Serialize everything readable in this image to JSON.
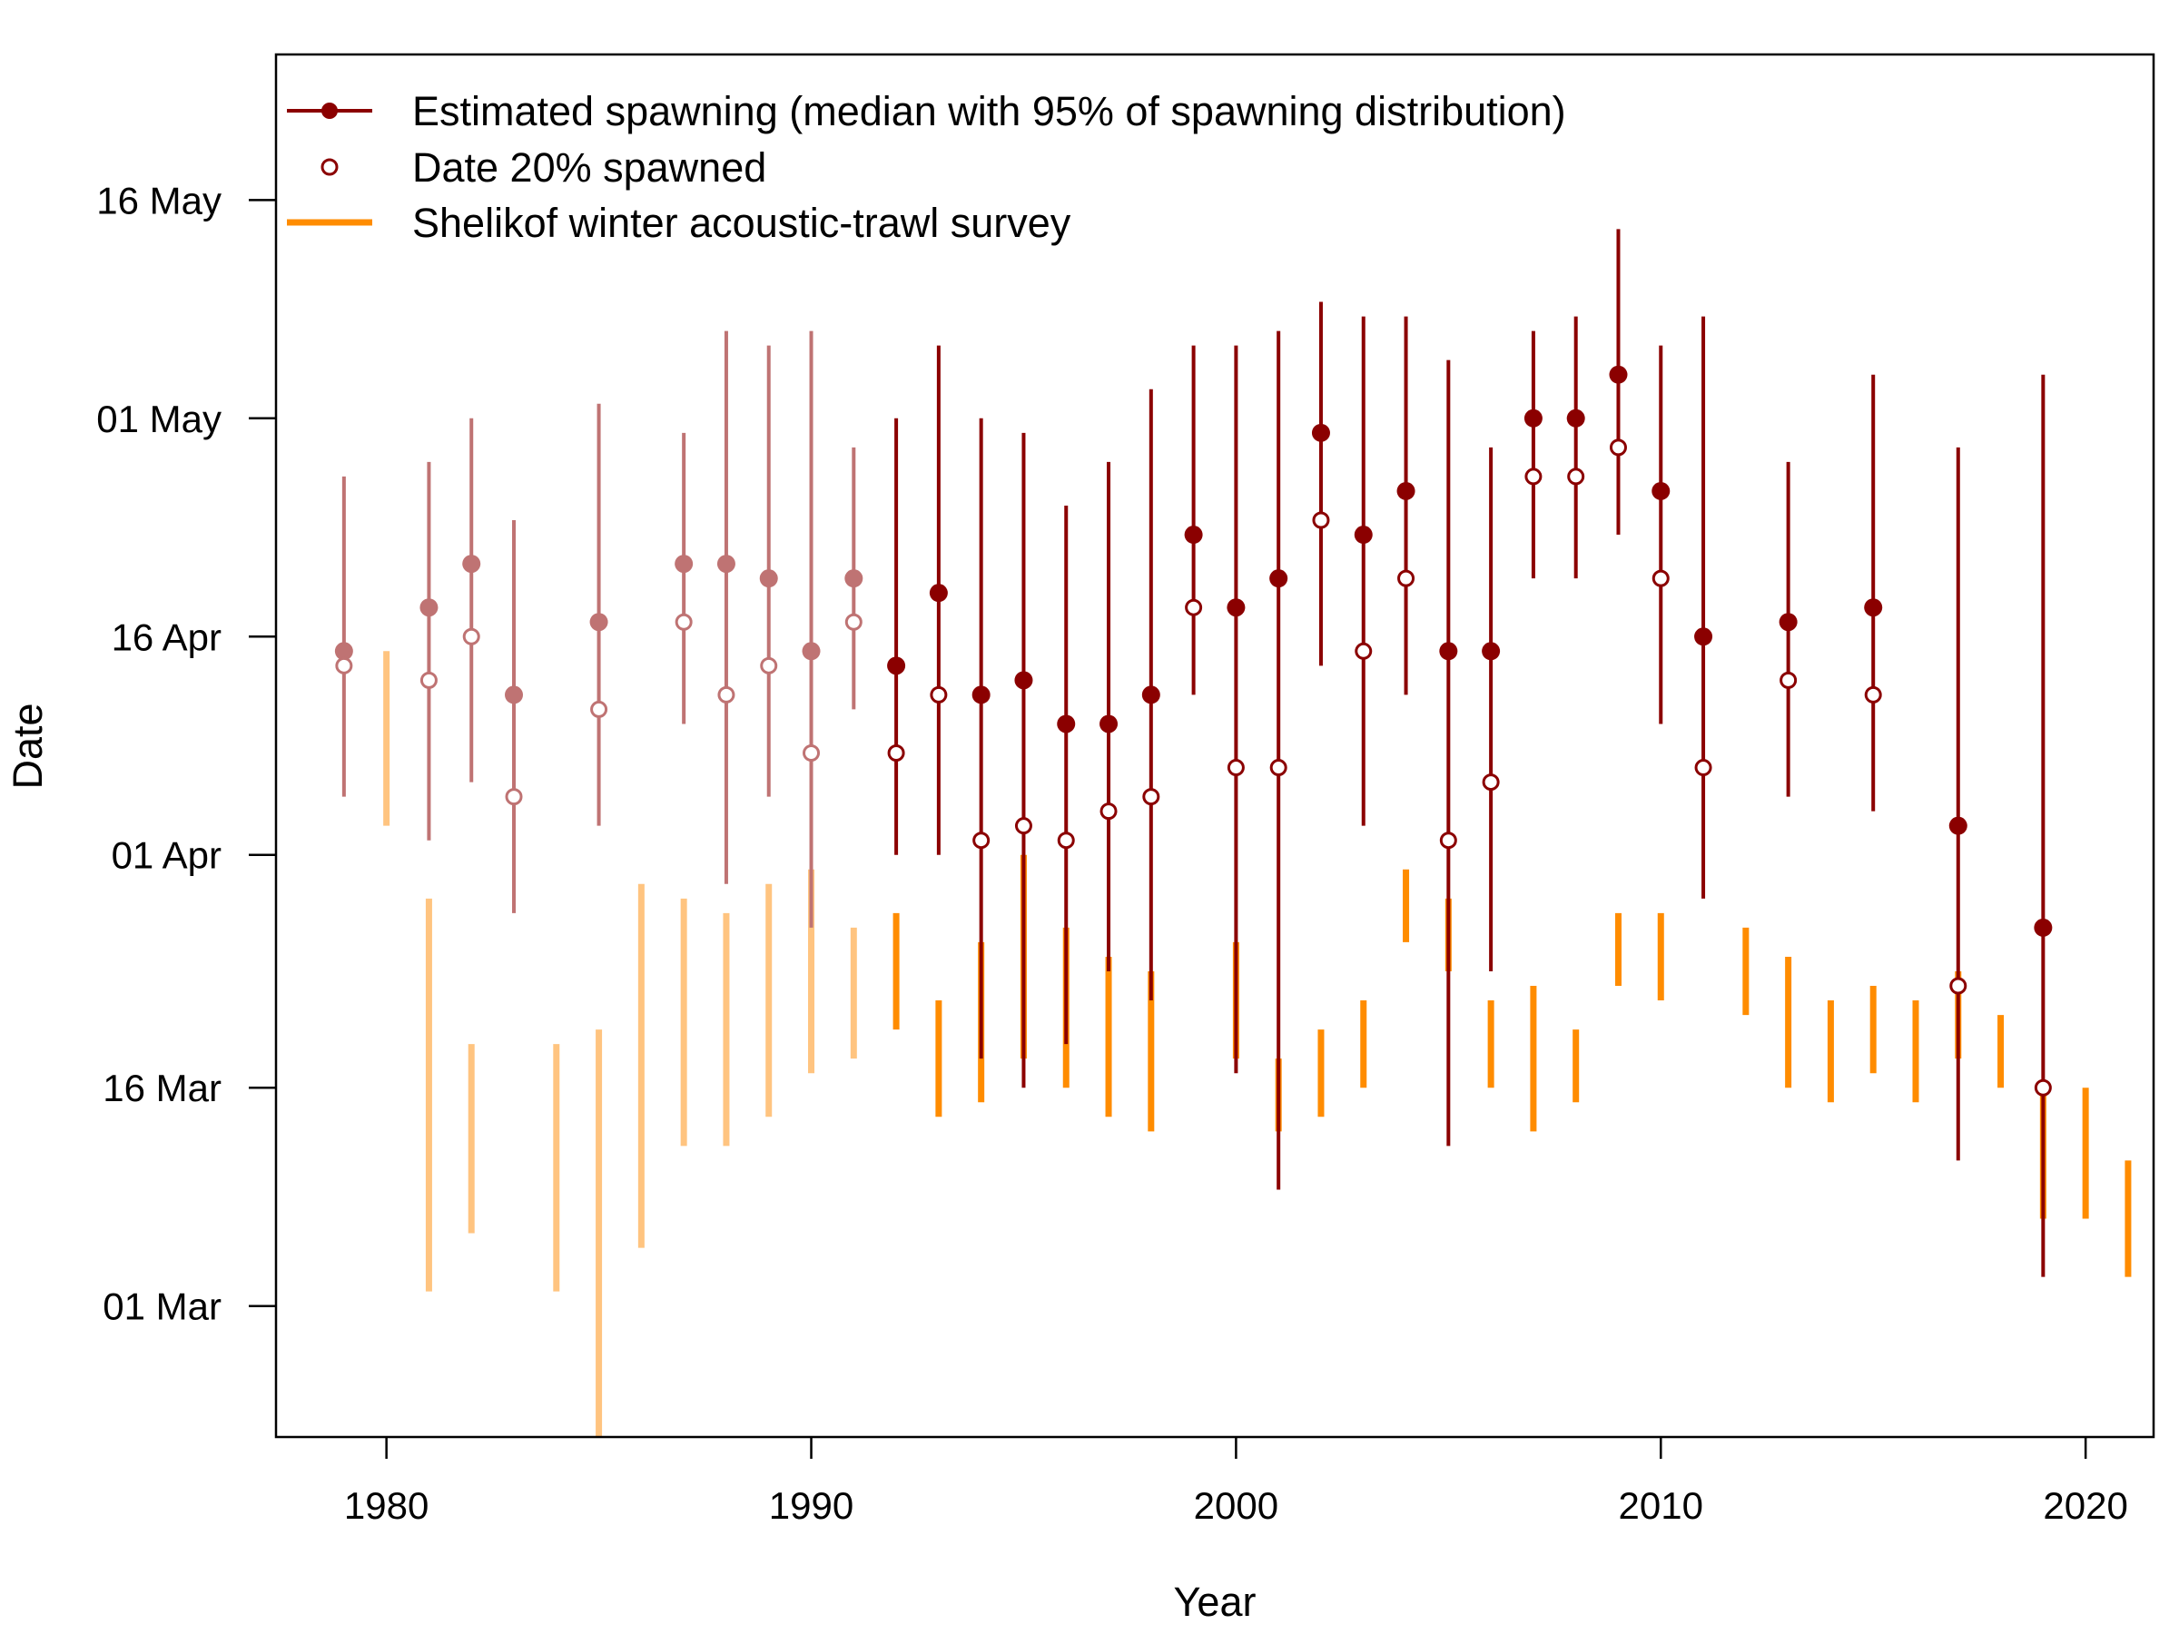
{
  "chart_data": {
    "type": "scatter",
    "xlabel": "Year",
    "ylabel": "Date",
    "xlim": [
      1977.4,
      2021.6
    ],
    "ylim": [
      "2000-02-21",
      "2000-05-26"
    ],
    "x_ticks": [
      1980,
      1990,
      2000,
      2010,
      2020
    ],
    "y_ticks": [
      {
        "label": "01 Mar",
        "date": "2000-03-01"
      },
      {
        "label": "16 Mar",
        "date": "2000-03-16"
      },
      {
        "label": "01 Apr",
        "date": "2000-04-01"
      },
      {
        "label": "16 Apr",
        "date": "2000-04-16"
      },
      {
        "label": "01 May",
        "date": "2000-05-01"
      },
      {
        "label": "16 May",
        "date": "2000-05-16"
      }
    ],
    "grid": false,
    "legend": {
      "position": "top-left",
      "entries": [
        {
          "label": "Estimated spawning (median with 95% of spawning distribution)",
          "color": "#8B0000",
          "marker": "line-with-filled-point"
        },
        {
          "label": "Date 20% spawned",
          "color": "#8B0000",
          "marker": "open-circle"
        },
        {
          "label": "Shelikof winter acoustic-trawl survey",
          "color": "#FF8C00",
          "marker": "line"
        }
      ]
    },
    "colors": {
      "spawning": "#8B0000",
      "spawning_faded": "#BF7373",
      "survey": "#FF8C00",
      "survey_faded": "#FFC480"
    },
    "series": [
      {
        "name": "Estimated spawning (median with 95% of spawning distribution)",
        "points": [
          {
            "year": 1979,
            "median": "2000-04-15",
            "low": "2000-04-05",
            "high": "2000-04-27",
            "faded": true
          },
          {
            "year": 1981,
            "median": "2000-04-18",
            "low": "2000-04-02",
            "high": "2000-04-28",
            "faded": true
          },
          {
            "year": 1982,
            "median": "2000-04-21",
            "low": "2000-04-06",
            "high": "2000-05-01",
            "faded": true
          },
          {
            "year": 1983,
            "median": "2000-04-12",
            "low": "2000-03-28",
            "high": "2000-04-24",
            "faded": true
          },
          {
            "year": 1985,
            "median": "2000-04-17",
            "low": "2000-04-03",
            "high": "2000-05-02",
            "faded": true
          },
          {
            "year": 1987,
            "median": "2000-04-21",
            "low": "2000-04-10",
            "high": "2000-04-30",
            "faded": true
          },
          {
            "year": 1988,
            "median": "2000-04-21",
            "low": "2000-03-30",
            "high": "2000-05-07",
            "faded": true
          },
          {
            "year": 1989,
            "median": "2000-04-20",
            "low": "2000-04-05",
            "high": "2000-05-06",
            "faded": true
          },
          {
            "year": 1990,
            "median": "2000-04-15",
            "low": "2000-03-27",
            "high": "2000-05-07",
            "faded": true
          },
          {
            "year": 1991,
            "median": "2000-04-20",
            "low": "2000-04-11",
            "high": "2000-04-29",
            "faded": true
          },
          {
            "year": 1992,
            "median": "2000-04-14",
            "low": "2000-04-01",
            "high": "2000-05-01",
            "faded": false
          },
          {
            "year": 1993,
            "median": "2000-04-19",
            "low": "2000-04-01",
            "high": "2000-05-06",
            "faded": false
          },
          {
            "year": 1994,
            "median": "2000-04-12",
            "low": "2000-03-18",
            "high": "2000-05-01",
            "faded": false
          },
          {
            "year": 1995,
            "median": "2000-04-13",
            "low": "2000-03-16",
            "high": "2000-04-30",
            "faded": false
          },
          {
            "year": 1996,
            "median": "2000-04-10",
            "low": "2000-03-19",
            "high": "2000-04-25",
            "faded": false
          },
          {
            "year": 1997,
            "median": "2000-04-10",
            "low": "2000-03-24",
            "high": "2000-04-28",
            "faded": false
          },
          {
            "year": 1998,
            "median": "2000-04-12",
            "low": "2000-03-22",
            "high": "2000-05-03",
            "faded": false
          },
          {
            "year": 1999,
            "median": "2000-04-23",
            "low": "2000-04-12",
            "high": "2000-05-06",
            "faded": false
          },
          {
            "year": 2000,
            "median": "2000-04-18",
            "low": "2000-03-17",
            "high": "2000-05-06",
            "faded": false
          },
          {
            "year": 2001,
            "median": "2000-04-20",
            "low": "2000-03-09",
            "high": "2000-05-07",
            "faded": false
          },
          {
            "year": 2002,
            "median": "2000-04-30",
            "low": "2000-04-14",
            "high": "2000-05-09",
            "faded": false
          },
          {
            "year": 2003,
            "median": "2000-04-23",
            "low": "2000-04-03",
            "high": "2000-05-08",
            "faded": false
          },
          {
            "year": 2004,
            "median": "2000-04-26",
            "low": "2000-04-12",
            "high": "2000-05-08",
            "faded": false
          },
          {
            "year": 2005,
            "median": "2000-04-15",
            "low": "2000-03-12",
            "high": "2000-05-05",
            "faded": false
          },
          {
            "year": 2006,
            "median": "2000-04-15",
            "low": "2000-03-24",
            "high": "2000-04-29",
            "faded": false
          },
          {
            "year": 2007,
            "median": "2000-05-01",
            "low": "2000-04-20",
            "high": "2000-05-07",
            "faded": false
          },
          {
            "year": 2008,
            "median": "2000-05-01",
            "low": "2000-04-20",
            "high": "2000-05-08",
            "faded": false
          },
          {
            "year": 2009,
            "median": "2000-05-04",
            "low": "2000-04-23",
            "high": "2000-05-14",
            "faded": false
          },
          {
            "year": 2010,
            "median": "2000-04-26",
            "low": "2000-04-10",
            "high": "2000-05-06",
            "faded": false
          },
          {
            "year": 2011,
            "median": "2000-04-16",
            "low": "2000-03-29",
            "high": "2000-05-08",
            "faded": false
          },
          {
            "year": 2013,
            "median": "2000-04-17",
            "low": "2000-04-05",
            "high": "2000-04-28",
            "faded": false
          },
          {
            "year": 2015,
            "median": "2000-04-18",
            "low": "2000-04-04",
            "high": "2000-05-04",
            "faded": false
          },
          {
            "year": 2017,
            "median": "2000-04-03",
            "low": "2000-03-11",
            "high": "2000-04-29",
            "faded": false
          },
          {
            "year": 2019,
            "median": "2000-03-27",
            "low": "2000-03-03",
            "high": "2000-05-04",
            "faded": false
          }
        ]
      },
      {
        "name": "Date 20% spawned",
        "points": [
          {
            "year": 1979,
            "date": "2000-04-14",
            "faded": true
          },
          {
            "year": 1981,
            "date": "2000-04-13",
            "faded": true
          },
          {
            "year": 1982,
            "date": "2000-04-16",
            "faded": true
          },
          {
            "year": 1983,
            "date": "2000-04-05",
            "faded": true
          },
          {
            "year": 1985,
            "date": "2000-04-11",
            "faded": true
          },
          {
            "year": 1987,
            "date": "2000-04-17",
            "faded": true
          },
          {
            "year": 1988,
            "date": "2000-04-12",
            "faded": true
          },
          {
            "year": 1989,
            "date": "2000-04-14",
            "faded": true
          },
          {
            "year": 1990,
            "date": "2000-04-08",
            "faded": true
          },
          {
            "year": 1991,
            "date": "2000-04-17",
            "faded": true
          },
          {
            "year": 1992,
            "date": "2000-04-08",
            "faded": false
          },
          {
            "year": 1993,
            "date": "2000-04-12",
            "faded": false
          },
          {
            "year": 1994,
            "date": "2000-04-02",
            "faded": false
          },
          {
            "year": 1995,
            "date": "2000-04-03",
            "faded": false
          },
          {
            "year": 1996,
            "date": "2000-04-02",
            "faded": false
          },
          {
            "year": 1997,
            "date": "2000-04-04",
            "faded": false
          },
          {
            "year": 1998,
            "date": "2000-04-05",
            "faded": false
          },
          {
            "year": 1999,
            "date": "2000-04-18",
            "faded": false
          },
          {
            "year": 2000,
            "date": "2000-04-07",
            "faded": false
          },
          {
            "year": 2001,
            "date": "2000-04-07",
            "faded": false
          },
          {
            "year": 2002,
            "date": "2000-04-24",
            "faded": false
          },
          {
            "year": 2003,
            "date": "2000-04-15",
            "faded": false
          },
          {
            "year": 2004,
            "date": "2000-04-20",
            "faded": false
          },
          {
            "year": 2005,
            "date": "2000-04-02",
            "faded": false
          },
          {
            "year": 2006,
            "date": "2000-04-06",
            "faded": false
          },
          {
            "year": 2007,
            "date": "2000-04-27",
            "faded": false
          },
          {
            "year": 2008,
            "date": "2000-04-27",
            "faded": false
          },
          {
            "year": 2009,
            "date": "2000-04-29",
            "faded": false
          },
          {
            "year": 2010,
            "date": "2000-04-20",
            "faded": false
          },
          {
            "year": 2011,
            "date": "2000-04-07",
            "faded": false
          },
          {
            "year": 2013,
            "date": "2000-04-13",
            "faded": false
          },
          {
            "year": 2015,
            "date": "2000-04-12",
            "faded": false
          },
          {
            "year": 2017,
            "date": "2000-03-23",
            "faded": false
          },
          {
            "year": 2019,
            "date": "2000-03-16",
            "faded": false
          }
        ]
      },
      {
        "name": "Shelikof winter acoustic-trawl survey",
        "ranges": [
          {
            "year": 1980,
            "start": "2000-04-03",
            "end": "2000-04-15",
            "faded": true
          },
          {
            "year": 1981,
            "start": "2000-03-02",
            "end": "2000-03-29",
            "faded": true
          },
          {
            "year": 1982,
            "start": "2000-03-06",
            "end": "2000-03-19",
            "faded": true
          },
          {
            "year": 1984,
            "start": "2000-03-02",
            "end": "2000-03-19",
            "faded": true
          },
          {
            "year": 1985,
            "start": "2000-02-21",
            "end": "2000-03-20",
            "faded": true
          },
          {
            "year": 1986,
            "start": "2000-03-05",
            "end": "2000-03-30",
            "faded": true
          },
          {
            "year": 1987,
            "start": "2000-03-12",
            "end": "2000-03-29",
            "faded": true
          },
          {
            "year": 1988,
            "start": "2000-03-12",
            "end": "2000-03-28",
            "faded": true
          },
          {
            "year": 1989,
            "start": "2000-03-14",
            "end": "2000-03-30",
            "faded": true
          },
          {
            "year": 1990,
            "start": "2000-03-17",
            "end": "2000-03-31",
            "faded": true
          },
          {
            "year": 1991,
            "start": "2000-03-18",
            "end": "2000-03-27",
            "faded": true
          },
          {
            "year": 1992,
            "start": "2000-03-20",
            "end": "2000-03-28",
            "faded": false
          },
          {
            "year": 1993,
            "start": "2000-03-14",
            "end": "2000-03-22",
            "faded": false
          },
          {
            "year": 1994,
            "start": "2000-03-15",
            "end": "2000-03-26",
            "faded": false
          },
          {
            "year": 1995,
            "start": "2000-03-18",
            "end": "2000-04-01",
            "faded": false
          },
          {
            "year": 1996,
            "start": "2000-03-16",
            "end": "2000-03-27",
            "faded": false
          },
          {
            "year": 1997,
            "start": "2000-03-14",
            "end": "2000-03-25",
            "faded": false
          },
          {
            "year": 1998,
            "start": "2000-03-13",
            "end": "2000-03-24",
            "faded": false
          },
          {
            "year": 2000,
            "start": "2000-03-18",
            "end": "2000-03-26",
            "faded": false
          },
          {
            "year": 2001,
            "start": "2000-03-13",
            "end": "2000-03-18",
            "faded": false
          },
          {
            "year": 2002,
            "start": "2000-03-14",
            "end": "2000-03-20",
            "faded": false
          },
          {
            "year": 2003,
            "start": "2000-03-16",
            "end": "2000-03-22",
            "faded": false
          },
          {
            "year": 2004,
            "start": "2000-03-26",
            "end": "2000-03-31",
            "faded": false
          },
          {
            "year": 2005,
            "start": "2000-03-24",
            "end": "2000-03-29",
            "faded": false
          },
          {
            "year": 2006,
            "start": "2000-03-16",
            "end": "2000-03-22",
            "faded": false
          },
          {
            "year": 2007,
            "start": "2000-03-13",
            "end": "2000-03-23",
            "faded": false
          },
          {
            "year": 2008,
            "start": "2000-03-15",
            "end": "2000-03-20",
            "faded": false
          },
          {
            "year": 2009,
            "start": "2000-03-23",
            "end": "2000-03-28",
            "faded": false
          },
          {
            "year": 2010,
            "start": "2000-03-22",
            "end": "2000-03-28",
            "faded": false
          },
          {
            "year": 2012,
            "start": "2000-03-21",
            "end": "2000-03-27",
            "faded": false
          },
          {
            "year": 2013,
            "start": "2000-03-16",
            "end": "2000-03-25",
            "faded": false
          },
          {
            "year": 2014,
            "start": "2000-03-15",
            "end": "2000-03-22",
            "faded": false
          },
          {
            "year": 2015,
            "start": "2000-03-17",
            "end": "2000-03-23",
            "faded": false
          },
          {
            "year": 2016,
            "start": "2000-03-15",
            "end": "2000-03-22",
            "faded": false
          },
          {
            "year": 2017,
            "start": "2000-03-18",
            "end": "2000-03-24",
            "faded": false
          },
          {
            "year": 2018,
            "start": "2000-03-16",
            "end": "2000-03-21",
            "faded": false
          },
          {
            "year": 2019,
            "start": "2000-03-07",
            "end": "2000-03-16",
            "faded": false
          },
          {
            "year": 2020,
            "start": "2000-03-07",
            "end": "2000-03-16",
            "faded": false
          },
          {
            "year": 2021,
            "start": "2000-03-03",
            "end": "2000-03-11",
            "faded": false
          }
        ]
      }
    ]
  }
}
